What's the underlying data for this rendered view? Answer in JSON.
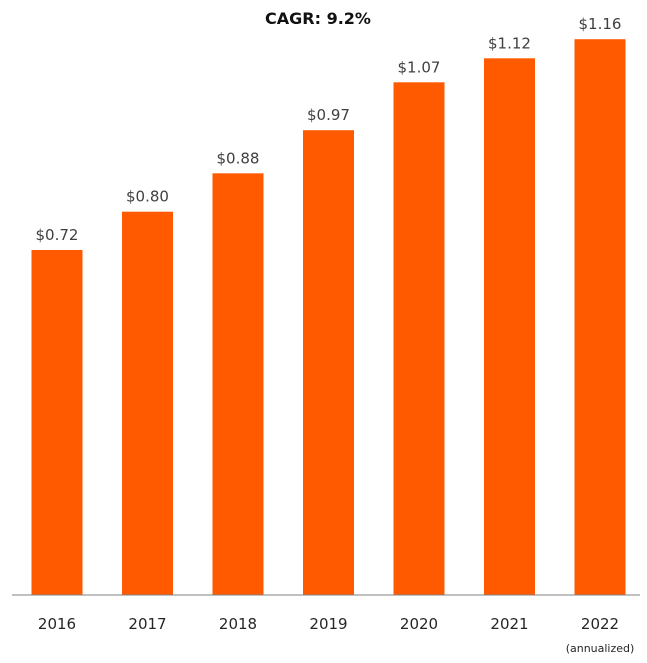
{
  "chart_data": {
    "type": "bar",
    "annotation": "CAGR: 9.2%",
    "categories": [
      "2016",
      "2017",
      "2018",
      "2019",
      "2020",
      "2021",
      "2022"
    ],
    "category_notes": [
      "",
      "",
      "",
      "",
      "",
      "",
      "(annualized)"
    ],
    "values": [
      0.72,
      0.8,
      0.88,
      0.97,
      1.07,
      1.12,
      1.16
    ],
    "value_labels": [
      "$0.72",
      "$0.80",
      "$0.88",
      "$0.97",
      "$1.07",
      "$1.12",
      "$1.16"
    ],
    "ylim": [
      0,
      1.2
    ],
    "grid": false,
    "legend": "none",
    "colors": {
      "bar": "#FF5A00",
      "axis": "#808080"
    }
  }
}
